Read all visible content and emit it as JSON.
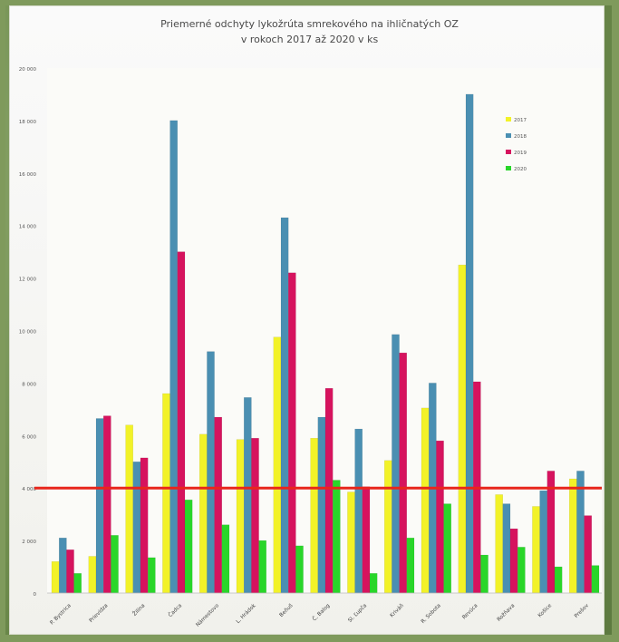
{
  "chart_data": {
    "type": "bar",
    "title": [
      "Priemerné odchyty lykožrúta smrekového na ihličnatých OZ",
      "v rokoch 2017 až 2020 v ks"
    ],
    "categories": [
      "P. Bystrica",
      "Prievidza",
      "Žilina",
      "Čadca",
      "Námestovo",
      "L. Hrádok",
      "Beňuš",
      "Č. Balog",
      "Sl. Ľupča",
      "Kriváň",
      "R. Sobota",
      "Revúca",
      "Rožňava",
      "Košice",
      "Prešov"
    ],
    "series": [
      {
        "name": "2017",
        "color": "#f2f228",
        "values": [
          1200,
          1400,
          6400,
          7600,
          6050,
          5850,
          9750,
          5900,
          3850,
          5050,
          7050,
          12500,
          3750,
          3300,
          4350
        ]
      },
      {
        "name": "2018",
        "color": "#4a8fb2",
        "values": [
          2100,
          6650,
          5000,
          18000,
          9200,
          7450,
          14300,
          6700,
          6250,
          9850,
          8000,
          19000,
          3400,
          3900,
          4650
        ]
      },
      {
        "name": "2019",
        "color": "#d6135e",
        "values": [
          1650,
          6750,
          5150,
          13000,
          6700,
          5900,
          12200,
          7800,
          4050,
          9150,
          5800,
          8050,
          2450,
          4650,
          2950
        ]
      },
      {
        "name": "2020",
        "color": "#29d629",
        "values": [
          750,
          2200,
          1350,
          3550,
          2600,
          2000,
          1800,
          4300,
          750,
          2100,
          3400,
          1450,
          1750,
          1000,
          1050
        ]
      }
    ],
    "ylim": [
      0,
      20000
    ],
    "yticks": [
      0,
      2000,
      4000,
      6000,
      8000,
      10000,
      12000,
      14000,
      16000,
      18000,
      20000
    ],
    "ytick_labels": [
      "0",
      "2 000",
      "4 000",
      "6 000",
      "8 000",
      "10 000",
      "12 000",
      "14 000",
      "16 000",
      "18 000",
      "20 000"
    ],
    "reference_line": {
      "value": 4000,
      "color": "#e8261c"
    },
    "legend_position": "top-right",
    "grid": false
  }
}
